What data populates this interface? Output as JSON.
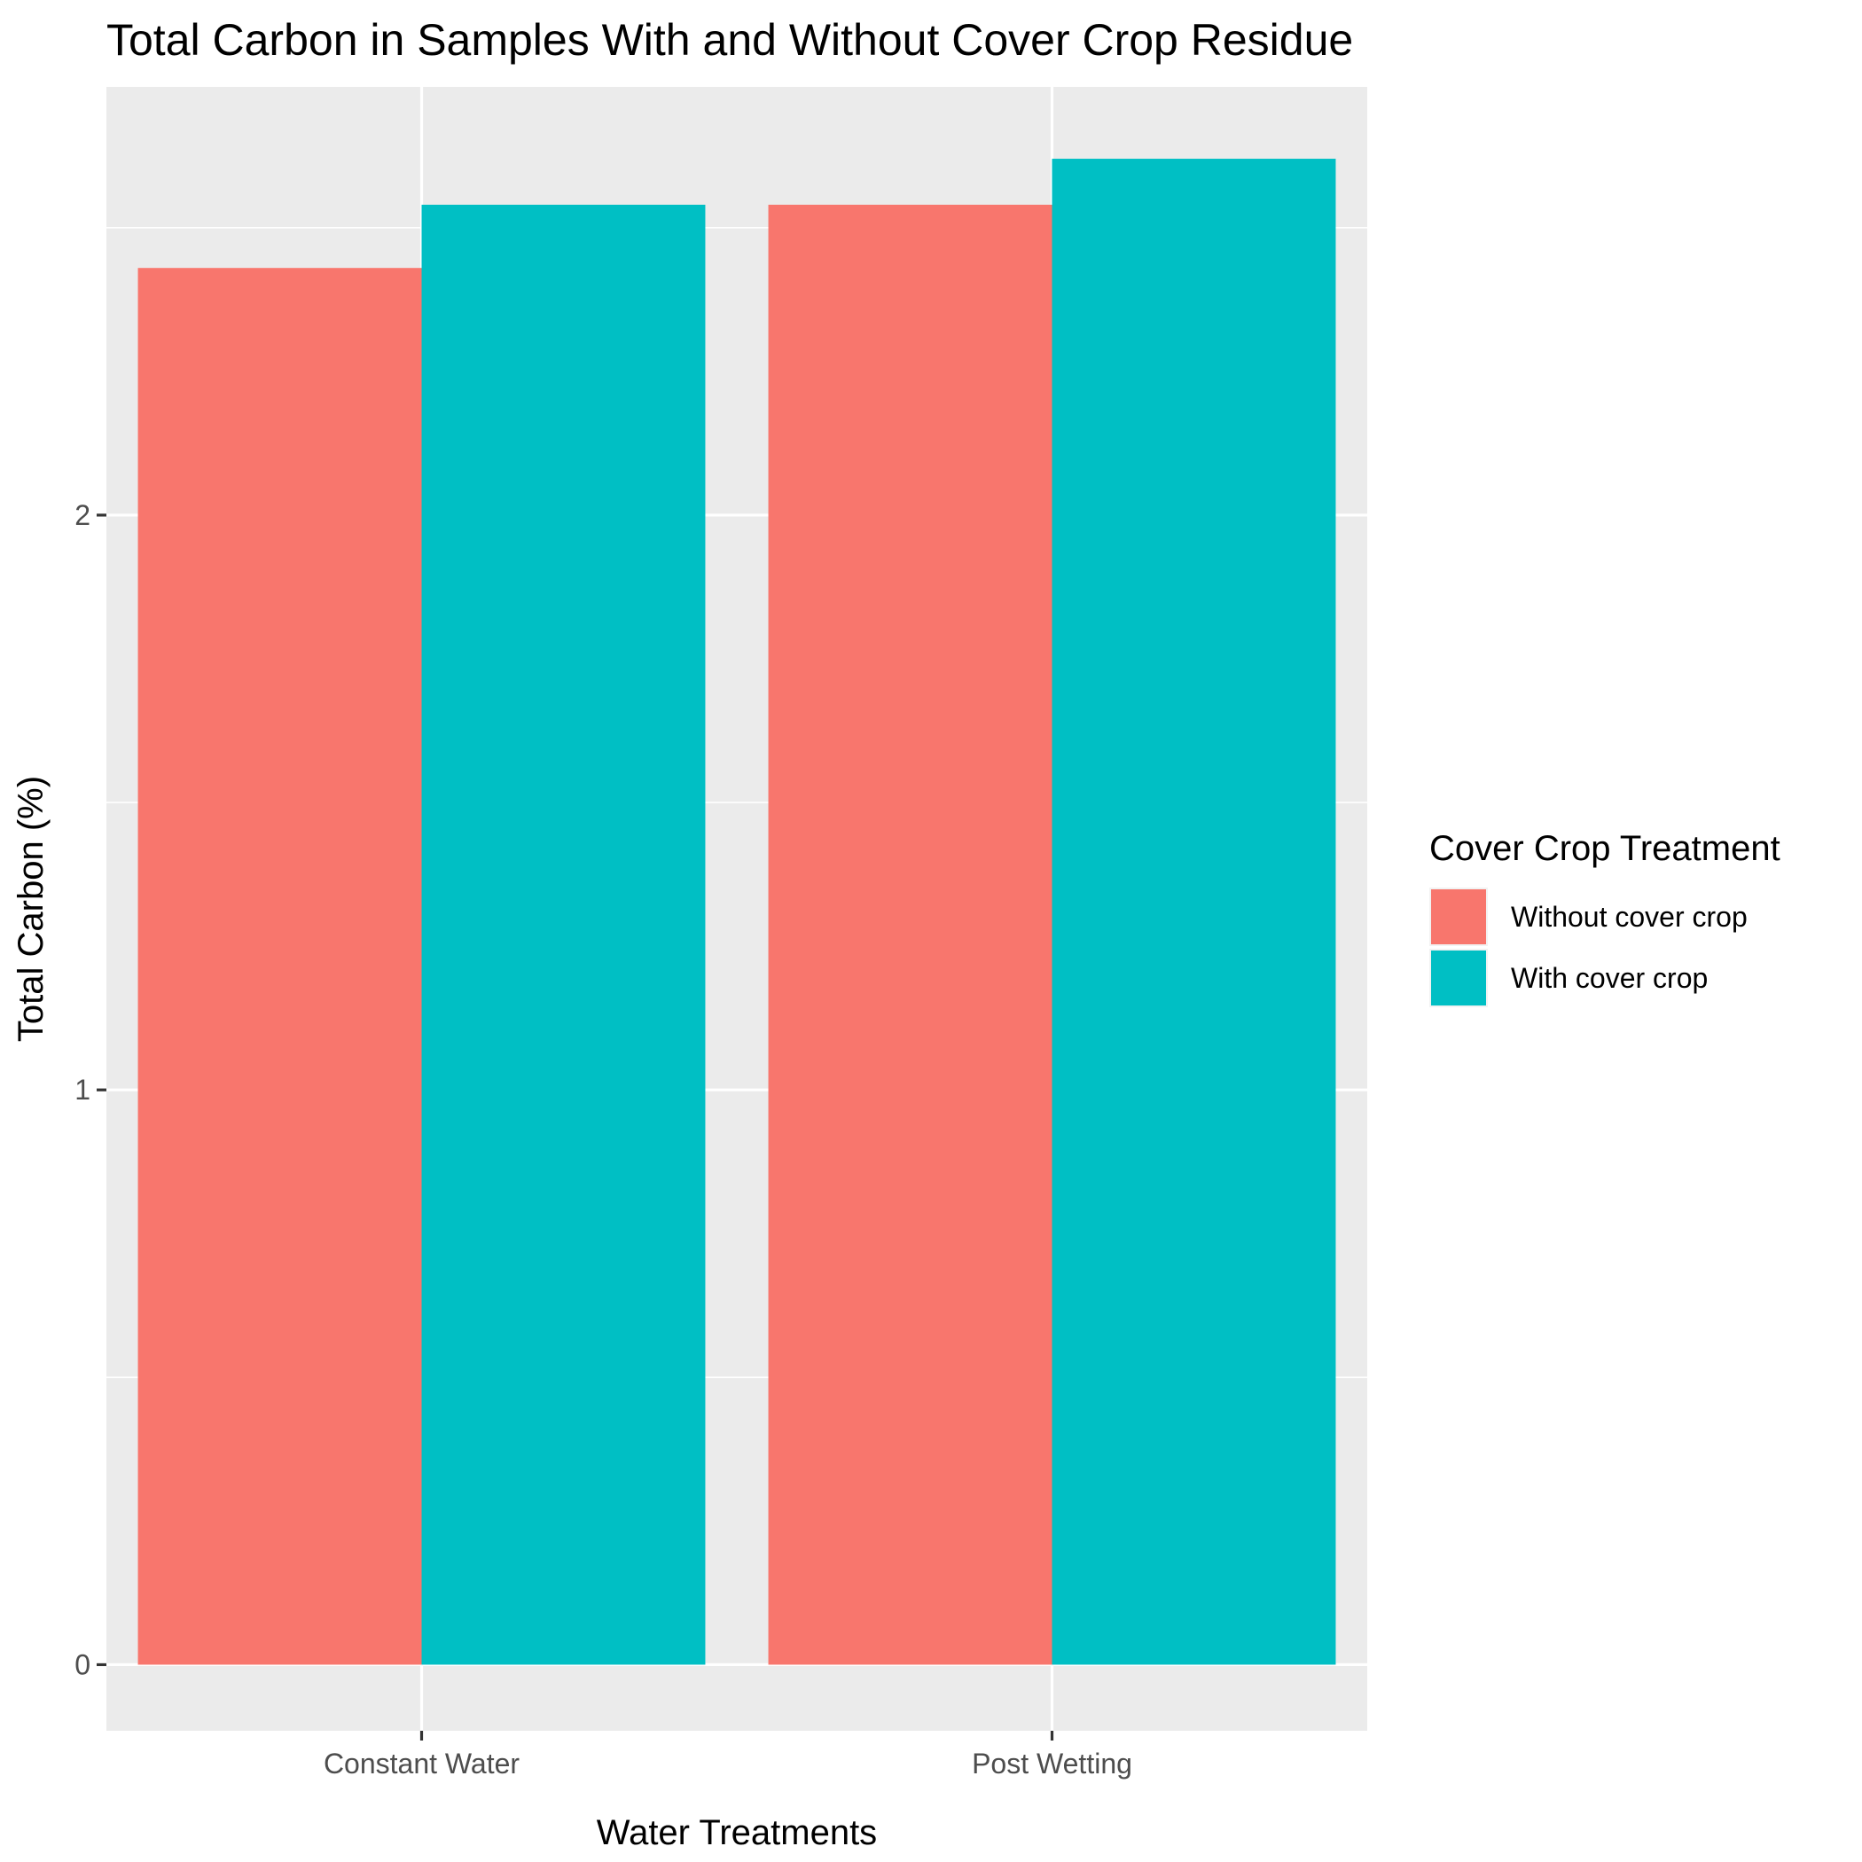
{
  "chart_data": {
    "type": "bar",
    "title": "Total Carbon in Samples With and Without Cover Crop Residue",
    "xlabel": "Water Treatments",
    "ylabel": "Total Carbon (%)",
    "categories": [
      "Constant Water",
      "Post Wetting"
    ],
    "series": [
      {
        "name": "Without cover crop",
        "values": [
          2.43,
          2.54
        ],
        "color": "#F8766D"
      },
      {
        "name": "With cover crop",
        "values": [
          2.54,
          2.62
        ],
        "color": "#00BFC4"
      }
    ],
    "ylim": [
      -0.115,
      2.745
    ],
    "yticks": [
      "0",
      "1",
      "2"
    ],
    "grid": true,
    "legend": {
      "title": "Cover Crop Treatment",
      "placement": "right"
    },
    "panel_background": "#EBEBEB",
    "grid_color": "#FFFFFF"
  }
}
